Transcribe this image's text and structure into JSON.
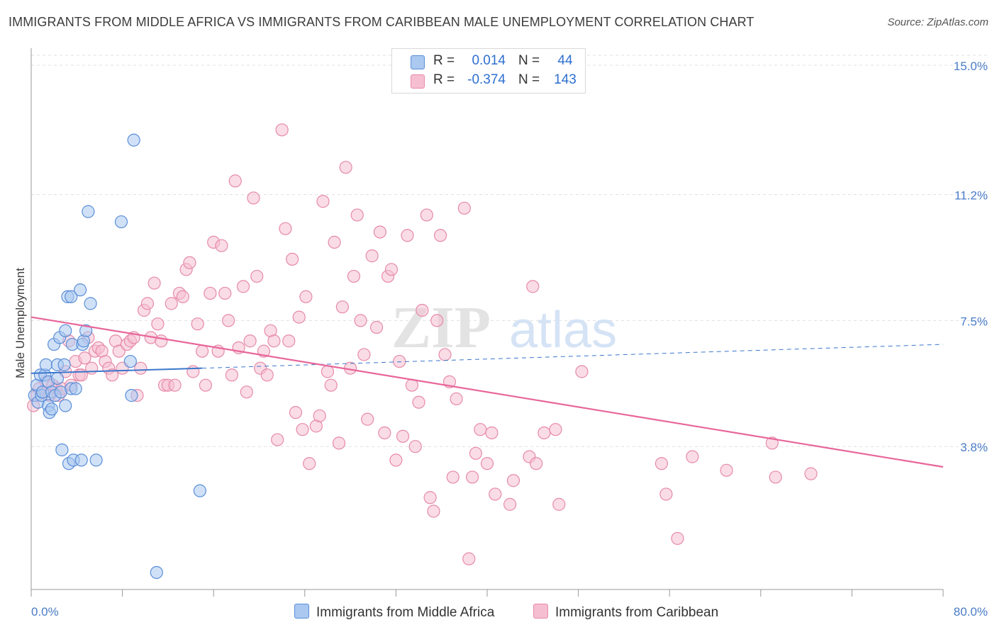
{
  "title": "IMMIGRANTS FROM MIDDLE AFRICA VS IMMIGRANTS FROM CARIBBEAN MALE UNEMPLOYMENT CORRELATION CHART",
  "source": "Source: ZipAtlas.com",
  "watermark": {
    "zip": "ZIP",
    "atlas": "atlas"
  },
  "legend": {
    "r_label": "R =",
    "n_label": "N =",
    "rows": [
      {
        "name": "Immigrants from Middle Africa",
        "r": "0.014",
        "n": "44"
      },
      {
        "name": "Immigrants from Caribbean",
        "r": "-0.374",
        "n": "143"
      }
    ]
  },
  "colors": {
    "blue_fill": "#aac8f0",
    "blue_stroke": "#5b8ed8",
    "blue_line": "#3a77cc",
    "pink_fill": "#f6bfd1",
    "pink_stroke": "#e68aa8",
    "pink_line": "#e8659a",
    "tick_label": "#4a7cc7",
    "grid": "#e0e0e0"
  },
  "chart_data": {
    "type": "scatter",
    "title": "IMMIGRANTS FROM MIDDLE AFRICA VS IMMIGRANTS FROM CARIBBEAN MALE UNEMPLOYMENT CORRELATION CHART",
    "xlabel": "",
    "ylabel": "Male Unemployment",
    "xlim": [
      0,
      80
    ],
    "ylim": [
      -0.4,
      15.5
    ],
    "x_tick_labels": [
      "0.0%",
      "80.0%"
    ],
    "y_ticks": [
      3.8,
      7.5,
      11.2,
      15.0
    ],
    "y_tick_labels": [
      "3.8%",
      "7.5%",
      "11.2%",
      "15.0%"
    ],
    "grid": true,
    "series": [
      {
        "name": "Immigrants from Middle Africa",
        "r": 0.014,
        "n": 44,
        "points": [
          [
            0.3,
            5.3
          ],
          [
            0.5,
            5.6
          ],
          [
            0.6,
            5.1
          ],
          [
            0.8,
            5.9
          ],
          [
            0.9,
            5.3
          ],
          [
            1.0,
            5.4
          ],
          [
            1.2,
            5.9
          ],
          [
            1.3,
            6.2
          ],
          [
            1.5,
            5.7
          ],
          [
            1.5,
            5.0
          ],
          [
            1.6,
            4.8
          ],
          [
            1.8,
            4.9
          ],
          [
            1.8,
            5.4
          ],
          [
            2.0,
            6.8
          ],
          [
            2.1,
            5.3
          ],
          [
            2.3,
            5.8
          ],
          [
            2.3,
            6.2
          ],
          [
            2.5,
            7.0
          ],
          [
            2.6,
            5.4
          ],
          [
            2.7,
            3.7
          ],
          [
            2.9,
            6.2
          ],
          [
            3.0,
            5.0
          ],
          [
            3.0,
            7.2
          ],
          [
            3.2,
            8.2
          ],
          [
            3.3,
            3.3
          ],
          [
            3.5,
            8.2
          ],
          [
            3.5,
            5.5
          ],
          [
            3.6,
            6.8
          ],
          [
            3.7,
            3.4
          ],
          [
            3.9,
            5.5
          ],
          [
            4.3,
            8.4
          ],
          [
            4.4,
            3.4
          ],
          [
            4.5,
            6.8
          ],
          [
            4.6,
            6.9
          ],
          [
            4.8,
            7.2
          ],
          [
            5.0,
            10.7
          ],
          [
            5.2,
            8.0
          ],
          [
            5.7,
            3.4
          ],
          [
            7.9,
            10.4
          ],
          [
            8.7,
            6.3
          ],
          [
            8.8,
            5.3
          ],
          [
            9.0,
            12.8
          ],
          [
            11.0,
            0.1
          ],
          [
            14.8,
            2.5
          ]
        ],
        "trend": {
          "x_solid": [
            0,
            15
          ],
          "y_solid": [
            5.95,
            6.1
          ],
          "x_dash": [
            15,
            80
          ],
          "y_dash": [
            6.1,
            6.8
          ]
        }
      },
      {
        "name": "Immigrants from Caribbean",
        "r": -0.374,
        "n": 143,
        "points": [
          [
            0.2,
            5.0
          ],
          [
            0.5,
            5.3
          ],
          [
            0.7,
            5.5
          ],
          [
            1.0,
            5.4
          ],
          [
            1.3,
            5.7
          ],
          [
            1.6,
            5.3
          ],
          [
            1.9,
            5.6
          ],
          [
            2.2,
            5.5
          ],
          [
            2.4,
            5.3
          ],
          [
            2.7,
            5.5
          ],
          [
            3.0,
            6.0
          ],
          [
            3.3,
            6.9
          ],
          [
            3.5,
            5.6
          ],
          [
            3.9,
            6.3
          ],
          [
            4.2,
            5.9
          ],
          [
            4.4,
            5.9
          ],
          [
            4.7,
            6.4
          ],
          [
            5.0,
            7.0
          ],
          [
            5.3,
            6.1
          ],
          [
            5.6,
            6.6
          ],
          [
            5.9,
            6.7
          ],
          [
            6.2,
            6.6
          ],
          [
            6.5,
            6.3
          ],
          [
            6.8,
            6.1
          ],
          [
            7.1,
            5.9
          ],
          [
            7.4,
            6.9
          ],
          [
            7.7,
            6.6
          ],
          [
            8.0,
            6.1
          ],
          [
            8.4,
            6.8
          ],
          [
            8.7,
            6.9
          ],
          [
            9.0,
            7.0
          ],
          [
            9.3,
            5.3
          ],
          [
            9.6,
            6.1
          ],
          [
            9.9,
            7.8
          ],
          [
            10.2,
            8.0
          ],
          [
            10.5,
            7.0
          ],
          [
            10.8,
            8.6
          ],
          [
            11.1,
            7.4
          ],
          [
            11.4,
            6.9
          ],
          [
            11.7,
            5.6
          ],
          [
            12.0,
            5.6
          ],
          [
            12.3,
            8.0
          ],
          [
            12.6,
            5.6
          ],
          [
            13.0,
            8.3
          ],
          [
            13.3,
            8.2
          ],
          [
            13.6,
            9.0
          ],
          [
            13.9,
            9.2
          ],
          [
            14.2,
            6.0
          ],
          [
            14.6,
            7.4
          ],
          [
            15.0,
            6.6
          ],
          [
            15.3,
            5.6
          ],
          [
            15.7,
            8.3
          ],
          [
            16.0,
            9.8
          ],
          [
            16.4,
            6.6
          ],
          [
            16.7,
            9.7
          ],
          [
            17.0,
            8.3
          ],
          [
            17.3,
            7.5
          ],
          [
            17.6,
            5.9
          ],
          [
            17.9,
            11.6
          ],
          [
            18.2,
            6.7
          ],
          [
            18.6,
            8.5
          ],
          [
            18.9,
            5.4
          ],
          [
            19.2,
            6.9
          ],
          [
            19.5,
            11.1
          ],
          [
            19.8,
            8.8
          ],
          [
            20.1,
            6.1
          ],
          [
            20.4,
            6.6
          ],
          [
            20.7,
            5.9
          ],
          [
            21.0,
            7.2
          ],
          [
            21.3,
            6.9
          ],
          [
            21.6,
            4.0
          ],
          [
            22.0,
            13.1
          ],
          [
            22.3,
            10.2
          ],
          [
            22.6,
            6.9
          ],
          [
            22.9,
            9.3
          ],
          [
            23.2,
            4.8
          ],
          [
            23.5,
            7.6
          ],
          [
            23.8,
            4.3
          ],
          [
            24.1,
            8.2
          ],
          [
            24.4,
            3.3
          ],
          [
            25.0,
            4.4
          ],
          [
            25.3,
            4.7
          ],
          [
            25.6,
            11.0
          ],
          [
            26.0,
            6.0
          ],
          [
            26.3,
            5.6
          ],
          [
            26.6,
            9.8
          ],
          [
            27.0,
            3.9
          ],
          [
            27.3,
            7.9
          ],
          [
            27.6,
            12.0
          ],
          [
            28.0,
            6.1
          ],
          [
            28.3,
            8.8
          ],
          [
            28.6,
            10.6
          ],
          [
            28.9,
            7.5
          ],
          [
            29.2,
            6.5
          ],
          [
            29.5,
            4.6
          ],
          [
            29.9,
            9.4
          ],
          [
            30.3,
            7.3
          ],
          [
            30.6,
            10.1
          ],
          [
            31.0,
            4.2
          ],
          [
            31.3,
            8.8
          ],
          [
            31.6,
            9.0
          ],
          [
            32.0,
            3.4
          ],
          [
            32.3,
            6.3
          ],
          [
            32.6,
            4.1
          ],
          [
            33.0,
            10.0
          ],
          [
            33.4,
            5.6
          ],
          [
            33.7,
            3.8
          ],
          [
            34.0,
            5.1
          ],
          [
            34.3,
            7.8
          ],
          [
            34.7,
            10.6
          ],
          [
            35.0,
            2.3
          ],
          [
            35.3,
            1.9
          ],
          [
            35.6,
            7.5
          ],
          [
            35.9,
            10.0
          ],
          [
            36.3,
            6.5
          ],
          [
            36.7,
            5.7
          ],
          [
            37.0,
            2.9
          ],
          [
            37.3,
            5.2
          ],
          [
            38.0,
            10.8
          ],
          [
            38.4,
            0.5
          ],
          [
            38.7,
            2.9
          ],
          [
            39.0,
            3.6
          ],
          [
            39.4,
            4.3
          ],
          [
            40.0,
            3.3
          ],
          [
            40.4,
            4.2
          ],
          [
            40.7,
            2.4
          ],
          [
            42.0,
            2.1
          ],
          [
            42.3,
            2.8
          ],
          [
            43.7,
            3.5
          ],
          [
            44.0,
            8.5
          ],
          [
            44.3,
            3.3
          ],
          [
            45.0,
            4.2
          ],
          [
            46.0,
            4.3
          ],
          [
            46.3,
            2.1
          ],
          [
            48.3,
            6.0
          ],
          [
            55.3,
            3.3
          ],
          [
            55.7,
            2.4
          ],
          [
            56.7,
            1.1
          ],
          [
            58.0,
            3.5
          ],
          [
            61.0,
            3.1
          ],
          [
            65.0,
            3.9
          ],
          [
            65.3,
            2.9
          ],
          [
            68.4,
            3.0
          ]
        ],
        "trend": {
          "x": [
            0,
            80
          ],
          "y": [
            7.6,
            3.2
          ]
        }
      }
    ]
  }
}
